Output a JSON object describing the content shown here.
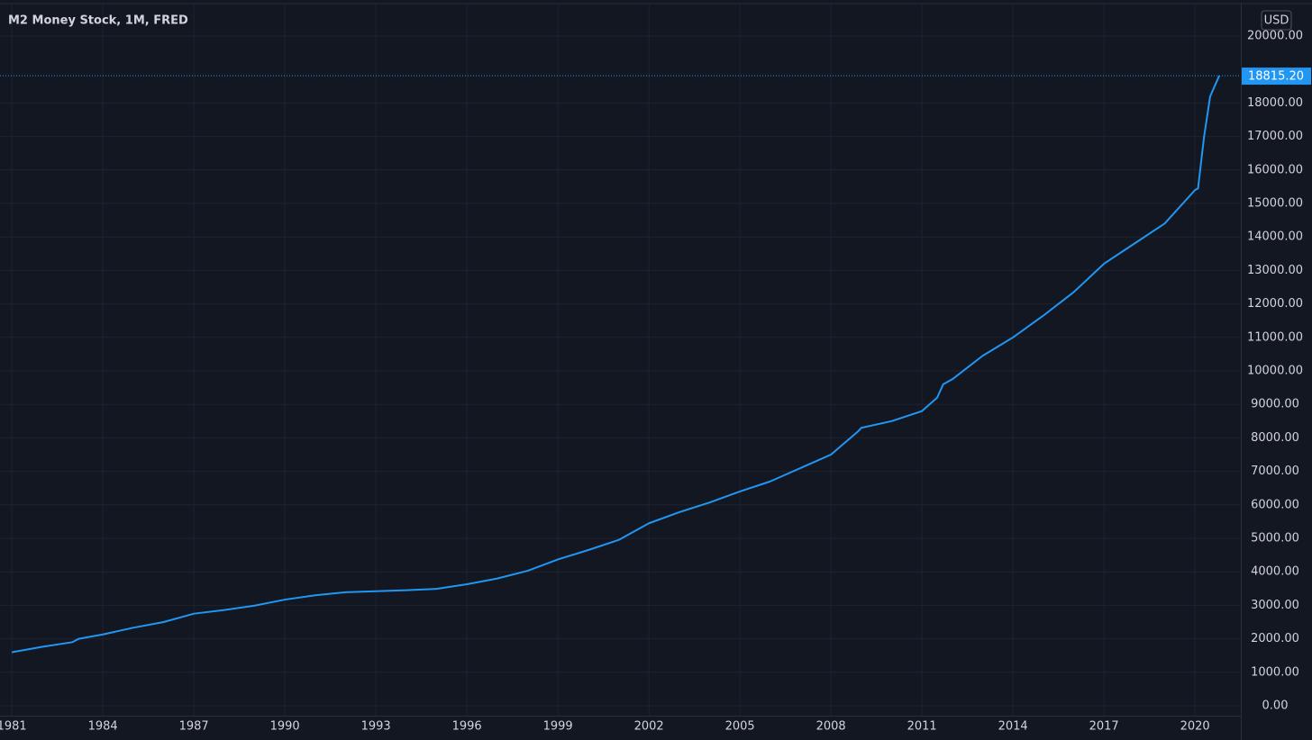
{
  "chart_data": {
    "type": "line",
    "title": "M2 Money Stock, 1M, FRED",
    "currency": "USD",
    "color": "#2196f3",
    "grid": true,
    "x": [
      1981.0,
      1982.0,
      1983.0,
      1983.2,
      1984.0,
      1985.0,
      1986.0,
      1987.0,
      1988.0,
      1989.0,
      1990.0,
      1991.0,
      1992.0,
      1993.0,
      1994.0,
      1995.0,
      1996.0,
      1997.0,
      1998.0,
      1999.0,
      2000.0,
      2001.0,
      2002.0,
      2003.0,
      2004.0,
      2005.0,
      2006.0,
      2007.0,
      2008.0,
      2008.9,
      2009.0,
      2010.0,
      2011.0,
      2011.5,
      2011.7,
      2012.0,
      2013.0,
      2014.0,
      2015.0,
      2016.0,
      2017.0,
      2018.0,
      2019.0,
      2020.0,
      2020.1,
      2020.3,
      2020.5,
      2020.8
    ],
    "values": [
      1600,
      1760,
      1900,
      2000,
      2130,
      2330,
      2500,
      2750,
      2860,
      2990,
      3170,
      3300,
      3390,
      3420,
      3450,
      3490,
      3630,
      3800,
      4030,
      4370,
      4650,
      4950,
      5450,
      5780,
      6070,
      6400,
      6700,
      7100,
      7500,
      8200,
      8300,
      8500,
      8800,
      9200,
      9600,
      9750,
      10450,
      11000,
      11650,
      12350,
      13200,
      13800,
      14400,
      15400,
      15450,
      17000,
      18200,
      18815.2
    ],
    "value_labels": [
      null,
      null,
      null,
      null,
      null,
      null,
      null,
      null,
      null,
      null,
      null,
      null,
      null,
      null,
      null,
      null,
      null,
      null,
      null,
      null,
      null,
      null,
      null,
      null,
      null,
      null,
      null,
      null,
      null,
      null,
      null,
      null,
      null,
      null,
      null,
      null,
      null,
      null,
      null,
      null,
      null,
      null,
      null,
      null,
      null,
      null,
      null,
      "18815.20"
    ],
    "xlim": [
      1980.61,
      2021.51
    ],
    "xticks": [
      1981,
      1984,
      1987,
      1990,
      1993,
      1996,
      1999,
      2002,
      2005,
      2008,
      2011,
      2014,
      2017,
      2020
    ],
    "ylim": [
      -296,
      20941
    ],
    "yticks": [
      {
        "value": 0,
        "label": "0.00"
      },
      {
        "value": 1000,
        "label": "1000.00"
      },
      {
        "value": 2000,
        "label": "2000.00"
      },
      {
        "value": 3000,
        "label": "3000.00"
      },
      {
        "value": 4000,
        "label": "4000.00"
      },
      {
        "value": 5000,
        "label": "5000.00"
      },
      {
        "value": 6000,
        "label": "6000.00"
      },
      {
        "value": 7000,
        "label": "7000.00"
      },
      {
        "value": 8000,
        "label": "8000.00"
      },
      {
        "value": 9000,
        "label": "9000.00"
      },
      {
        "value": 10000,
        "label": "10000.00"
      },
      {
        "value": 11000,
        "label": "11000.00"
      },
      {
        "value": 12000,
        "label": "12000.00"
      },
      {
        "value": 13000,
        "label": "13000.00"
      },
      {
        "value": 14000,
        "label": "14000.00"
      },
      {
        "value": 15000,
        "label": "15000.00"
      },
      {
        "value": 16000,
        "label": "16000.00"
      },
      {
        "value": 17000,
        "label": "17000.00"
      },
      {
        "value": 18000,
        "label": "18000.00"
      },
      {
        "value": 20000,
        "label": "20000.00"
      }
    ]
  }
}
